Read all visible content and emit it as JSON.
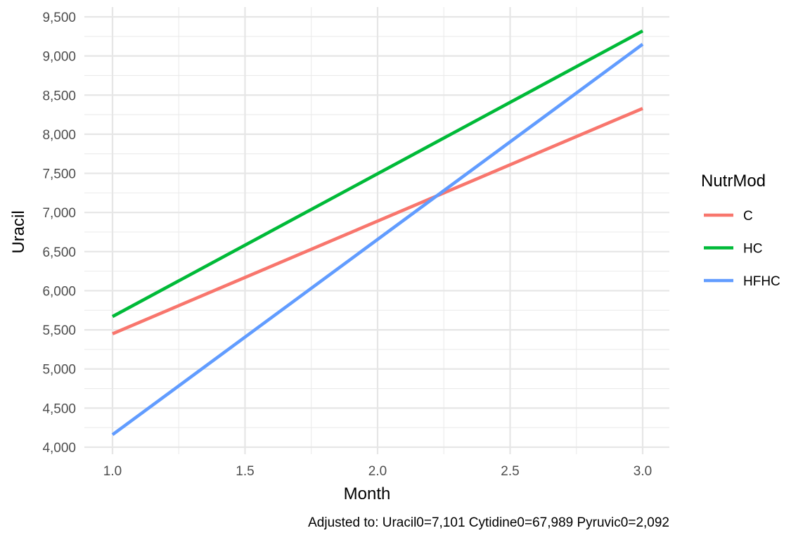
{
  "chart_data": {
    "type": "line",
    "title": "",
    "xlabel": "Month",
    "ylabel": "Uracil",
    "caption": "Adjusted to: Uracil0=7,101 Cytidine0=67,989 Pyruvic0=2,092",
    "xlim": [
      0.95,
      3.05
    ],
    "ylim": [
      3925,
      9530
    ],
    "x_ticks": [
      1.0,
      1.5,
      2.0,
      2.5,
      3.0
    ],
    "x_tick_labels": [
      "1.0",
      "1.5",
      "2.0",
      "2.5",
      "3.0"
    ],
    "y_ticks": [
      4000,
      4500,
      5000,
      5500,
      6000,
      6500,
      7000,
      7500,
      8000,
      8500,
      9000,
      9500
    ],
    "y_tick_labels": [
      "4,000",
      "4,500",
      "5,000",
      "5,500",
      "6,000",
      "6,500",
      "7,000",
      "7,500",
      "8,000",
      "8,500",
      "9,000",
      "9,500"
    ],
    "grid": true,
    "legend": {
      "title": "NutrMod",
      "position": "right"
    },
    "series": [
      {
        "name": "C",
        "color": "#F8766D",
        "x": [
          1.0,
          3.0
        ],
        "y": [
          5450,
          8330
        ]
      },
      {
        "name": "HC",
        "color": "#00BA38",
        "x": [
          1.0,
          3.0
        ],
        "y": [
          5670,
          9320
        ]
      },
      {
        "name": "HFHC",
        "color": "#619CFF",
        "x": [
          1.0,
          3.0
        ],
        "y": [
          4160,
          9150
        ]
      }
    ]
  }
}
